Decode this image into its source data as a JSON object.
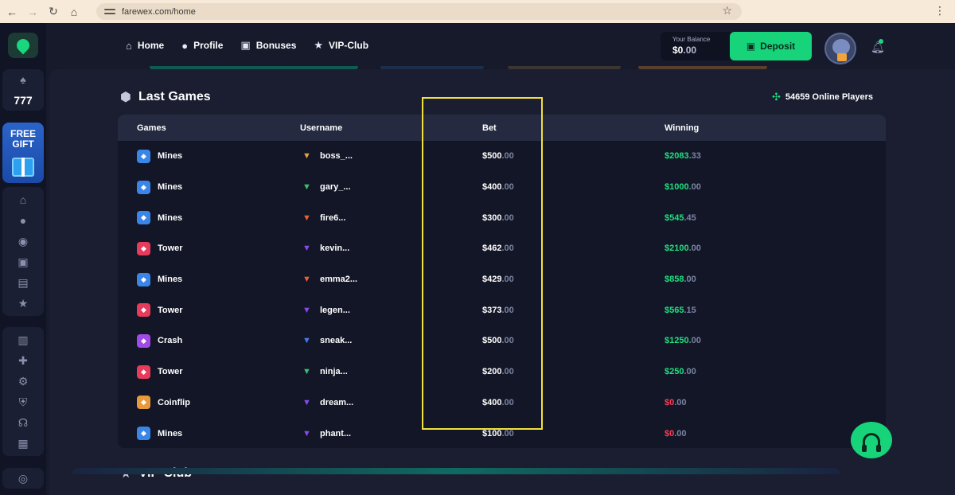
{
  "browser": {
    "url": "farewex.com/home"
  },
  "sidebar": {
    "gift_line1": "FREE",
    "gift_line2": "GIFT",
    "games_label": "777"
  },
  "topnav": [
    {
      "label": "Home",
      "icon": "home-icon"
    },
    {
      "label": "Profile",
      "icon": "user-icon"
    },
    {
      "label": "Bonuses",
      "icon": "gift-icon"
    },
    {
      "label": "VIP-Club",
      "icon": "star-icon"
    }
  ],
  "header": {
    "balance_label": "Your Balance",
    "balance_main": "$0",
    "balance_cents": ".00",
    "deposit_label": "Deposit"
  },
  "last_games": {
    "title": "Last Games",
    "online_players": "54659 Online Players",
    "columns": [
      "Games",
      "Username",
      "Bet",
      "Winning"
    ],
    "rows": [
      {
        "game": "Mines",
        "game_color": "#3a86e8",
        "user": "boss_...",
        "badge_color": "#e8a23a",
        "bet_main": "$500",
        "bet_cents": ".00",
        "win_main": "$2083",
        "win_cents": ".33",
        "win_state": "win"
      },
      {
        "game": "Mines",
        "game_color": "#3a86e8",
        "user": "gary_...",
        "badge_color": "#3fbf6a",
        "bet_main": "$400",
        "bet_cents": ".00",
        "win_main": "$1000",
        "win_cents": ".00",
        "win_state": "win"
      },
      {
        "game": "Mines",
        "game_color": "#3a86e8",
        "user": "fire6...",
        "badge_color": "#e8603a",
        "bet_main": "$300",
        "bet_cents": ".00",
        "win_main": "$545",
        "win_cents": ".45",
        "win_state": "win"
      },
      {
        "game": "Tower",
        "game_color": "#e83a5a",
        "user": "kevin...",
        "badge_color": "#8a4ae8",
        "bet_main": "$462",
        "bet_cents": ".00",
        "win_main": "$2100",
        "win_cents": ".00",
        "win_state": "win"
      },
      {
        "game": "Mines",
        "game_color": "#3a86e8",
        "user": "emma2...",
        "badge_color": "#e8603a",
        "bet_main": "$429",
        "bet_cents": ".00",
        "win_main": "$858",
        "win_cents": ".00",
        "win_state": "win"
      },
      {
        "game": "Tower",
        "game_color": "#e83a5a",
        "user": "legen...",
        "badge_color": "#8a4ae8",
        "bet_main": "$373",
        "bet_cents": ".00",
        "win_main": "$565",
        "win_cents": ".15",
        "win_state": "win"
      },
      {
        "game": "Crash",
        "game_color": "#a24ae8",
        "user": "sneak...",
        "badge_color": "#4a7ae8",
        "bet_main": "$500",
        "bet_cents": ".00",
        "win_main": "$1250",
        "win_cents": ".00",
        "win_state": "win"
      },
      {
        "game": "Tower",
        "game_color": "#e83a5a",
        "user": "ninja...",
        "badge_color": "#3fbf6a",
        "bet_main": "$200",
        "bet_cents": ".00",
        "win_main": "$250",
        "win_cents": ".00",
        "win_state": "win"
      },
      {
        "game": "Coinflip",
        "game_color": "#e89a3a",
        "user": "dream...",
        "badge_color": "#8a4ae8",
        "bet_main": "$400",
        "bet_cents": ".00",
        "win_main": "$0",
        "win_cents": ".00",
        "win_state": "loss"
      },
      {
        "game": "Mines",
        "game_color": "#3a86e8",
        "user": "phant...",
        "badge_color": "#8a4ae8",
        "bet_main": "$100",
        "bet_cents": ".00",
        "win_main": "$0",
        "win_cents": ".00",
        "win_state": "loss"
      }
    ]
  },
  "vip": {
    "title": "VIP-Club"
  }
}
